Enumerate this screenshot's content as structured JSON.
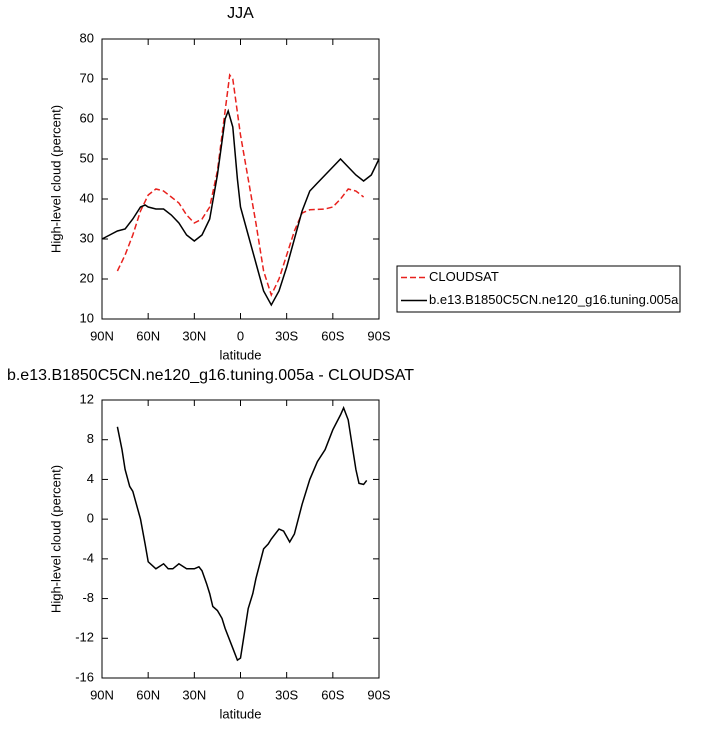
{
  "chart_data": [
    {
      "type": "line",
      "title": "JJA",
      "xlabel": "latitude",
      "ylabel": "High-level cloud (percent)",
      "xlim": [
        90,
        -90
      ],
      "xticks": [
        {
          "value": 90,
          "label": "90N"
        },
        {
          "value": 60,
          "label": "60N"
        },
        {
          "value": 30,
          "label": "30N"
        },
        0,
        {
          "value": -30,
          "label": "30S"
        },
        {
          "value": -60,
          "label": "60S"
        },
        {
          "value": -90,
          "label": "90S"
        }
      ],
      "ylim": [
        10,
        80
      ],
      "yticks": [
        10,
        20,
        30,
        40,
        50,
        60,
        70,
        80
      ],
      "series": [
        {
          "name": "CLOUDSAT",
          "color": "#e8211d",
          "line_style": "dashed",
          "x": [
            80,
            75,
            70,
            65,
            60,
            55,
            50,
            45,
            40,
            35,
            30,
            25,
            20,
            15,
            10,
            7,
            5,
            0,
            -5,
            -10,
            -15,
            -20,
            -25,
            -30,
            -35,
            -40,
            -45,
            -50,
            -55,
            -60,
            -65,
            -70,
            -75,
            -80
          ],
          "values": [
            22,
            26,
            31,
            37,
            41,
            42.5,
            42,
            40.5,
            39,
            36,
            34,
            35,
            38,
            47,
            62,
            71,
            70,
            56,
            45,
            34,
            22,
            16,
            20,
            26,
            32,
            36.5,
            37.3,
            37.4,
            37.5,
            38,
            40,
            42.5,
            42,
            40.5
          ]
        },
        {
          "name": "b.e13.B1850C5CN.ne120_g16.tuning.005a",
          "color": "#000000",
          "line_style": "solid",
          "x": [
            90,
            85,
            80,
            75,
            70,
            65,
            62,
            60,
            55,
            50,
            45,
            40,
            35,
            30,
            25,
            20,
            15,
            10,
            8,
            5,
            2,
            0,
            -5,
            -10,
            -15,
            -20,
            -25,
            -30,
            -35,
            -40,
            -45,
            -50,
            -55,
            -60,
            -65,
            -70,
            -75,
            -80,
            -85,
            -90
          ],
          "values": [
            30,
            31,
            32,
            32.5,
            35,
            38,
            38.5,
            38,
            37.5,
            37.5,
            36,
            34,
            31,
            29.5,
            31,
            35,
            46,
            60,
            62,
            58,
            45,
            38,
            31,
            24,
            17,
            13.5,
            17,
            23,
            30,
            37,
            42,
            44,
            46,
            48,
            50,
            48,
            46,
            44.5,
            46,
            50
          ]
        }
      ]
    },
    {
      "type": "line",
      "title": "b.e13.B1850C5CN.ne120_g16.tuning.005a - CLOUDSAT",
      "xlabel": "latitude",
      "ylabel": "High-level cloud (percent)",
      "xlim": [
        90,
        -90
      ],
      "xticks": [
        {
          "value": 90,
          "label": "90N"
        },
        {
          "value": 60,
          "label": "60N"
        },
        {
          "value": 30,
          "label": "30N"
        },
        0,
        {
          "value": -30,
          "label": "30S"
        },
        {
          "value": -60,
          "label": "60S"
        },
        {
          "value": -90,
          "label": "90S"
        }
      ],
      "ylim": [
        -16,
        12
      ],
      "yticks": [
        -16,
        -12,
        -8,
        -4,
        0,
        4,
        8,
        12
      ],
      "series": [
        {
          "color": "#000000",
          "line_style": "solid",
          "x": [
            80,
            77,
            75,
            72,
            70,
            65,
            62,
            60,
            55,
            50,
            47,
            44,
            40,
            35,
            30,
            27,
            25,
            22,
            20,
            18,
            15,
            12,
            10,
            5,
            2,
            0,
            -2,
            -5,
            -8,
            -10,
            -15,
            -18,
            -20,
            -25,
            -28,
            -32,
            -35,
            -40,
            -45,
            -50,
            -55,
            -60,
            -65,
            -67,
            -70,
            -73,
            -75,
            -77,
            -80,
            -82
          ],
          "values": [
            9.3,
            7,
            5,
            3.3,
            2.8,
            0,
            -2.5,
            -4.3,
            -5,
            -4.5,
            -5,
            -5,
            -4.5,
            -5,
            -5,
            -4.8,
            -5.2,
            -6.5,
            -7.5,
            -8.8,
            -9.2,
            -10,
            -11,
            -13,
            -14.2,
            -14,
            -12,
            -9,
            -7.5,
            -6,
            -3,
            -2.5,
            -2,
            -1,
            -1.2,
            -2.3,
            -1.5,
            1.5,
            4,
            5.8,
            7,
            9,
            10.5,
            11.2,
            10,
            7,
            5,
            3.6,
            3.5,
            3.9
          ]
        }
      ]
    }
  ]
}
